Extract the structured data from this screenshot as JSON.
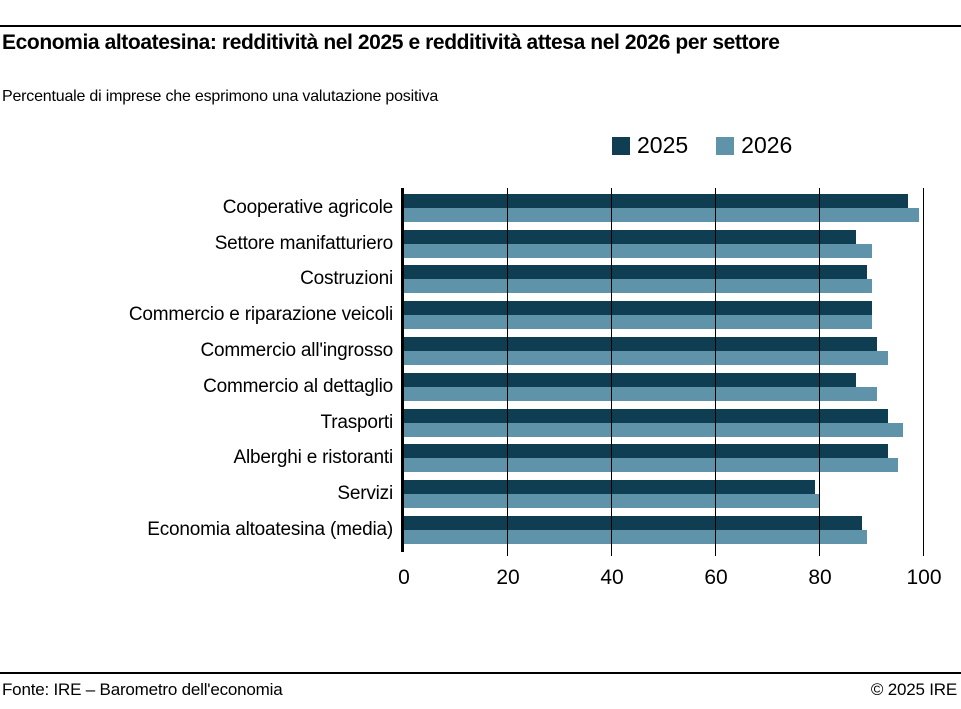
{
  "header": {
    "title": "Economia altoatesina: redditività nel 2025 e redditività attesa nel 2026 per settore",
    "subtitle": "Percentuale di imprese che esprimono una valutazione positiva"
  },
  "legend": {
    "items": [
      {
        "label": "2025",
        "color": "#0f3e53"
      },
      {
        "label": "2026",
        "color": "#5e93a9"
      }
    ]
  },
  "chart_data": {
    "type": "bar",
    "orientation": "horizontal",
    "title": "Economia altoatesina: redditività nel 2025 e redditività attesa nel 2026 per settore",
    "subtitle": "Percentuale di imprese che esprimono una valutazione positiva",
    "categories": [
      "Cooperative agricole",
      "Settore manifatturiero",
      "Costruzioni",
      "Commercio e riparazione veicoli",
      "Commercio all'ingrosso",
      "Commercio al dettaglio",
      "Trasporti",
      "Alberghi e ristoranti",
      "Servizi",
      "Economia altoatesina (media)"
    ],
    "series": [
      {
        "name": "2025",
        "color": "#0f3e53",
        "values": [
          97,
          87,
          89,
          90,
          91,
          87,
          93,
          93,
          79,
          88
        ]
      },
      {
        "name": "2026",
        "color": "#5e93a9",
        "values": [
          99,
          90,
          90,
          90,
          93,
          91,
          96,
          95,
          80,
          89
        ]
      }
    ],
    "xlabel": "",
    "ylabel": "",
    "xlim": [
      0,
      100
    ],
    "xticks": [
      0,
      20,
      40,
      60,
      80,
      100
    ],
    "grid": "vertical",
    "legend_position": "top"
  },
  "footer": {
    "source": "Fonte: IRE – Barometro dell'economia",
    "copyright": "© 2025 IRE"
  }
}
